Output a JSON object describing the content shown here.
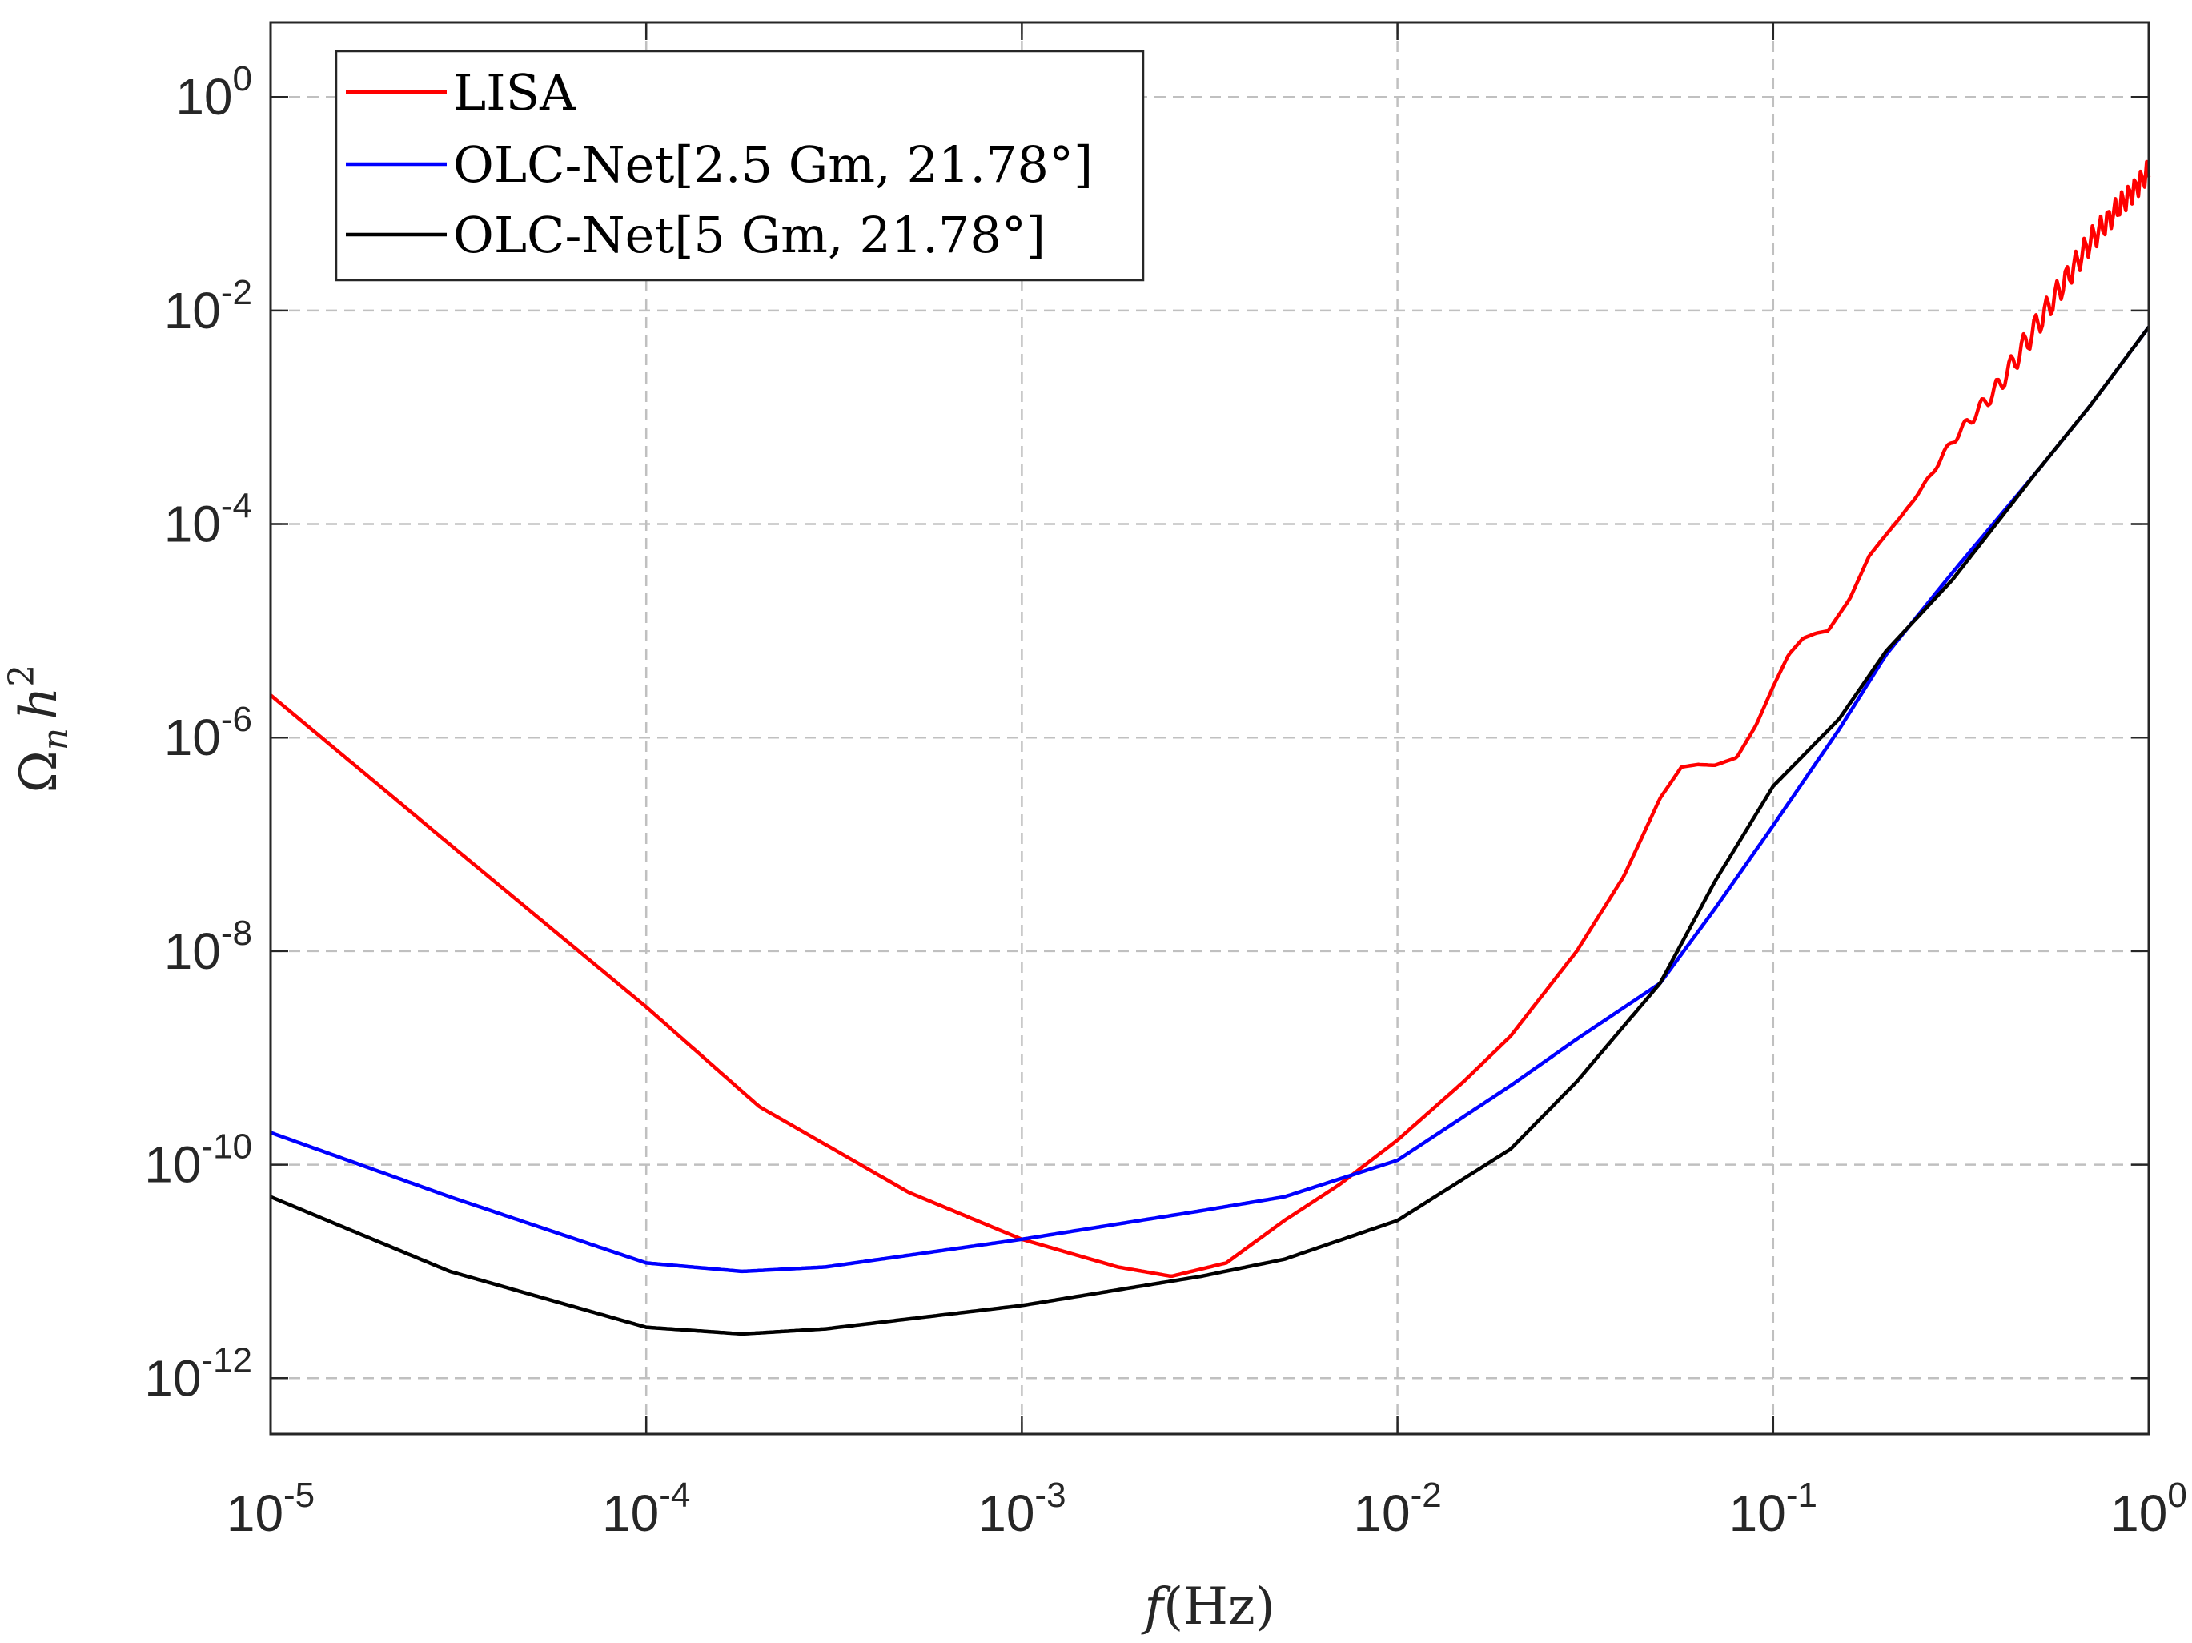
{
  "chart_data": {
    "type": "line",
    "xscale": "log",
    "yscale": "log",
    "xlim": [
      1e-05,
      1
    ],
    "ylim": [
      3e-13,
      5
    ],
    "grid": true,
    "legend_position": "top-left",
    "xlabel": {
      "var": "f",
      "unit": "(Hz)"
    },
    "ylabel": {
      "var": "Ω",
      "sub": "n",
      "var2": "h",
      "sup": "2"
    },
    "x_ticks": [
      {
        "value": 1e-05,
        "base": "10",
        "exp": "-5"
      },
      {
        "value": 0.0001,
        "base": "10",
        "exp": "-4"
      },
      {
        "value": 0.001,
        "base": "10",
        "exp": "-3"
      },
      {
        "value": 0.01,
        "base": "10",
        "exp": "-2"
      },
      {
        "value": 0.1,
        "base": "10",
        "exp": "-1"
      },
      {
        "value": 1,
        "base": "10",
        "exp": "0"
      }
    ],
    "y_ticks": [
      {
        "value": 1e-12,
        "base": "10",
        "exp": "-12"
      },
      {
        "value": 1e-10,
        "base": "10",
        "exp": "-10"
      },
      {
        "value": 1e-08,
        "base": "10",
        "exp": "-8"
      },
      {
        "value": 1e-06,
        "base": "10",
        "exp": "-6"
      },
      {
        "value": 0.0001,
        "base": "10",
        "exp": "-4"
      },
      {
        "value": 0.01,
        "base": "10",
        "exp": "-2"
      },
      {
        "value": 1,
        "base": "10",
        "exp": "0"
      }
    ],
    "series": [
      {
        "name": "LISA",
        "color": "#ff0000",
        "x": [
          1e-05,
          3e-05,
          0.0001,
          0.0002,
          0.0005,
          0.001,
          0.0018,
          0.0025,
          0.0035,
          0.005,
          0.007,
          0.01,
          0.015,
          0.02,
          0.03,
          0.04,
          0.05,
          0.057,
          0.063,
          0.07,
          0.08,
          0.09,
          0.1,
          0.11,
          0.12,
          0.13,
          0.14,
          0.16,
          0.18,
          0.2,
          0.22,
          0.25,
          0.3,
          0.4,
          0.5,
          0.7,
          1.0
        ],
        "y": [
          2.5e-06,
          1e-07,
          3e-09,
          3.5e-10,
          5.5e-11,
          2e-11,
          1.1e-11,
          9e-12,
          1.2e-11,
          3e-11,
          6.5e-11,
          1.7e-10,
          6e-10,
          1.6e-09,
          1e-08,
          5e-08,
          2.7e-07,
          5.3e-07,
          5.6e-07,
          5.5e-07,
          6.5e-07,
          1.3e-06,
          3e-06,
          6e-06,
          8.5e-06,
          9.5e-06,
          1e-05,
          2e-05,
          5e-05,
          8e-05,
          0.00012,
          0.00022,
          0.0006,
          0.002,
          0.007,
          0.045,
          0.2
        ]
      },
      {
        "name": "OLC-Net[2.5 Gm,  21.78°]",
        "color": "#0000ff",
        "x": [
          1e-05,
          3e-05,
          0.0001,
          0.00018,
          0.0003,
          0.001,
          0.003,
          0.005,
          0.01,
          0.02,
          0.03,
          0.05,
          0.07,
          0.1,
          0.15,
          0.2,
          0.3,
          0.5,
          0.7,
          1.0
        ],
        "y": [
          2e-10,
          5e-11,
          1.2e-11,
          1e-11,
          1.1e-11,
          2e-11,
          3.7e-11,
          5e-11,
          1.1e-10,
          5.5e-10,
          1.5e-09,
          5e-09,
          2.5e-08,
          1.5e-07,
          1.2e-06,
          6e-06,
          3.5e-05,
          0.0003,
          0.0013,
          0.007
        ]
      },
      {
        "name": "OLC-Net[5 Gm,  21.78°]",
        "color": "#000000",
        "x": [
          1e-05,
          3e-05,
          0.0001,
          0.00018,
          0.0003,
          0.001,
          0.003,
          0.005,
          0.01,
          0.02,
          0.03,
          0.05,
          0.07,
          0.1,
          0.15,
          0.2,
          0.3,
          0.5,
          0.7,
          1.0
        ],
        "y": [
          5e-11,
          1e-11,
          3e-12,
          2.6e-12,
          2.9e-12,
          4.8e-12,
          9e-12,
          1.3e-11,
          3e-11,
          1.4e-10,
          6e-10,
          5e-09,
          4.5e-08,
          3.5e-07,
          1.5e-06,
          6.5e-06,
          3e-05,
          0.0003,
          0.0013,
          0.007
        ]
      }
    ]
  }
}
